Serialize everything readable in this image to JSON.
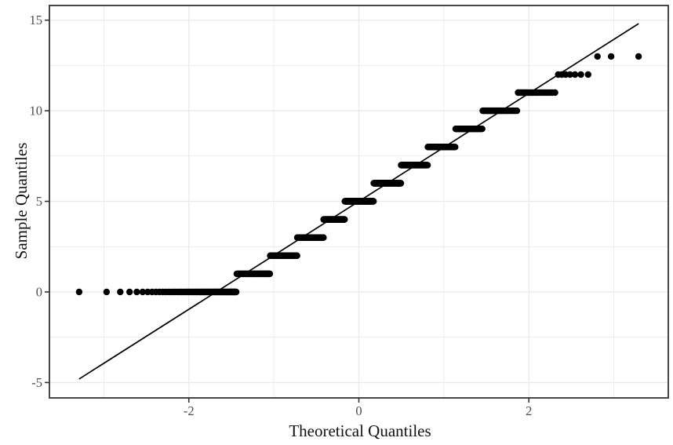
{
  "chart_data": {
    "type": "scatter",
    "variant": "qq-plot",
    "title": "",
    "xlabel": "Theoretical Quantiles",
    "ylabel": "Sample Quantiles",
    "xlim": [
      -3.64,
      3.64
    ],
    "ylim": [
      -5.85,
      15.81
    ],
    "x_axis": {
      "major_ticks": [
        -2,
        0,
        2
      ],
      "tick_labels": [
        "-2",
        "0",
        "2"
      ],
      "minor_gridlines": [
        -3,
        -1,
        1,
        3
      ]
    },
    "y_axis": {
      "major_ticks": [
        -5,
        0,
        5,
        10,
        15
      ],
      "tick_labels": [
        "-5",
        "0",
        "5",
        "10",
        "15"
      ],
      "minor_gridlines": [
        -2.5,
        2.5,
        7.5,
        12.5
      ]
    },
    "n_points": 1000,
    "sample_values": [
      0,
      1,
      2,
      3,
      4,
      5,
      6,
      7,
      8,
      9,
      10,
      11,
      12,
      13
    ],
    "sample_value_counts": [
      75,
      73,
      86,
      105,
      95,
      135,
      121,
      101,
      81,
      55,
      42,
      21,
      7,
      3
    ],
    "reference_line": {
      "slope": 2.98,
      "intercept": 5.0,
      "x_range": [
        -3.291,
        3.291
      ]
    },
    "grid": "major and minor gridlines, no legend",
    "legend": false
  },
  "style": {
    "background_color": "#ffffff",
    "point_color": "#000000",
    "reference_line_color": "#000000",
    "grid_color": "#ebebeb",
    "panel_border_color": "#333333",
    "tick_mark_color": "#333333",
    "tick_label_color": "#4d4d4d",
    "axis_title_color": "#111111"
  }
}
